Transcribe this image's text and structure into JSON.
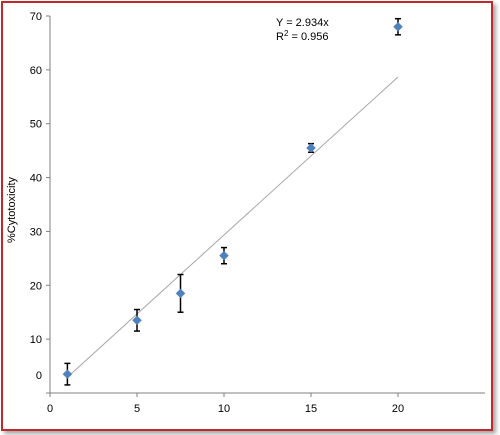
{
  "chart_data": {
    "type": "scatter",
    "title": "",
    "xlabel": "",
    "ylabel": "%Cytotoxicity",
    "xlim": [
      0,
      25
    ],
    "ylim": [
      0,
      70
    ],
    "xticks": [
      "0",
      "5",
      "10",
      "15",
      "20"
    ],
    "yticks": [
      "0",
      "10",
      "20",
      "30",
      "40",
      "50",
      "60",
      "70"
    ],
    "grid": false,
    "series": [
      {
        "marker": "diamond",
        "color": "#4f81bd",
        "points": [
          {
            "x": 1,
            "y": 3.5,
            "err": 2.0
          },
          {
            "x": 5,
            "y": 13.5,
            "err": 2.0
          },
          {
            "x": 7.5,
            "y": 18.5,
            "err": 3.5
          },
          {
            "x": 10,
            "y": 25.5,
            "err": 1.5
          },
          {
            "x": 15,
            "y": 45.5,
            "err": 0.8
          },
          {
            "x": 20,
            "y": 68.0,
            "err": 1.5
          }
        ]
      }
    ],
    "trendline": {
      "slope": 2.934,
      "x_range": [
        1,
        20
      ],
      "color": "#a6a6a6",
      "equation": "Y = 2.934x",
      "r2_prefix": "R",
      "r2_sup": "2",
      "r2_value": " = 0.956"
    }
  }
}
